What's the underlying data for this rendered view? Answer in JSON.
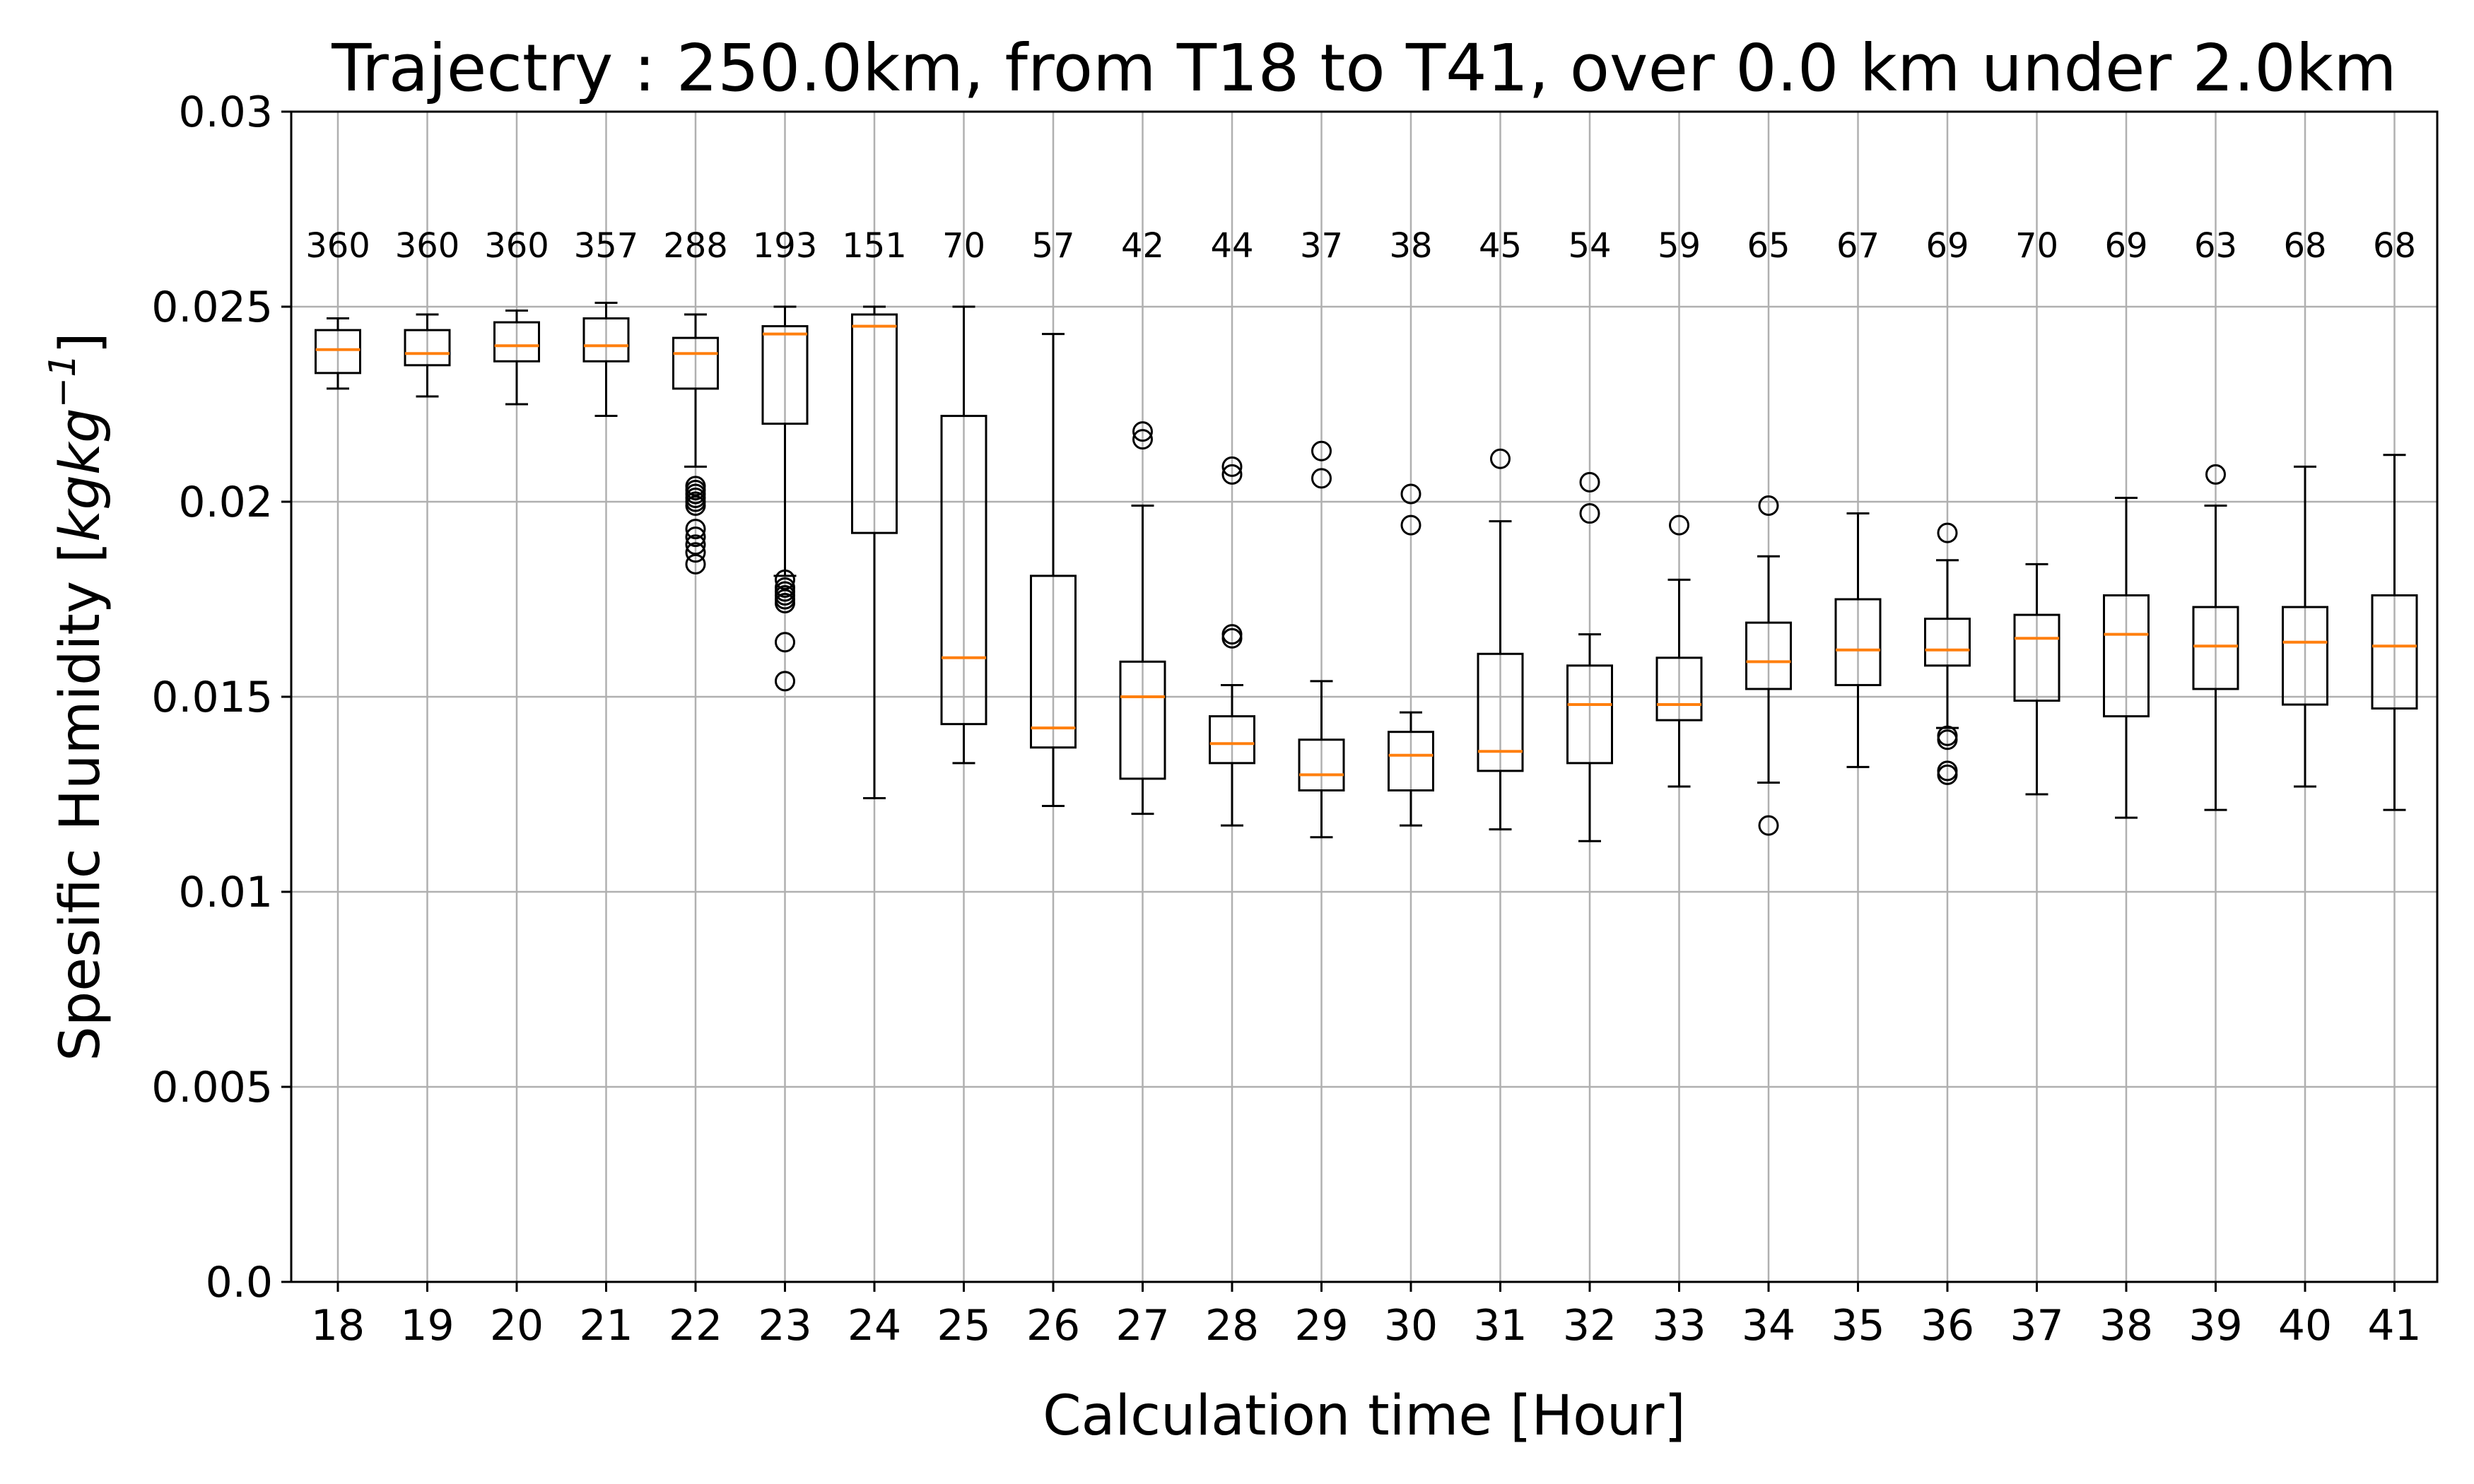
{
  "chart_data": {
    "type": "box",
    "title": "Trajectry : 250.0km, from T18 to T41, over 0.0 km under 2.0km",
    "xlabel": "Calculation time [Hour]",
    "ylabel_prefix": "Spesific Humidity [",
    "ylabel_unit": "kgkg",
    "ylabel_exp": "−1",
    "ylabel_suffix": "]",
    "ylim": [
      0.0,
      0.03
    ],
    "yticks": [
      0.0,
      0.005,
      0.01,
      0.015,
      0.02,
      0.025,
      0.03
    ],
    "ytick_labels": [
      "0.0",
      "0.005",
      "0.01",
      "0.015",
      "0.02",
      "0.025",
      "0.03"
    ],
    "grid": true,
    "colors": {
      "box": "#000000",
      "median": "#ff7f0e",
      "grid": "#b0b0b0"
    },
    "categories": [
      "18",
      "19",
      "20",
      "21",
      "22",
      "23",
      "24",
      "25",
      "26",
      "27",
      "28",
      "29",
      "30",
      "31",
      "32",
      "33",
      "34",
      "35",
      "36",
      "37",
      "38",
      "39",
      "40",
      "41"
    ],
    "counts": [
      "360",
      "360",
      "360",
      "357",
      "288",
      "193",
      "151",
      "70",
      "57",
      "42",
      "44",
      "37",
      "38",
      "45",
      "54",
      "59",
      "65",
      "67",
      "69",
      "70",
      "69",
      "63",
      "68",
      "68"
    ],
    "boxes": [
      {
        "whislo": 0.0229,
        "q1": 0.0233,
        "med": 0.0239,
        "q3": 0.0244,
        "whishi": 0.0247,
        "fliers": []
      },
      {
        "whislo": 0.0227,
        "q1": 0.0235,
        "med": 0.0238,
        "q3": 0.0244,
        "whishi": 0.0248,
        "fliers": []
      },
      {
        "whislo": 0.0225,
        "q1": 0.0236,
        "med": 0.024,
        "q3": 0.0246,
        "whishi": 0.0249,
        "fliers": []
      },
      {
        "whislo": 0.0222,
        "q1": 0.0236,
        "med": 0.024,
        "q3": 0.0247,
        "whishi": 0.0251,
        "fliers": []
      },
      {
        "whislo": 0.0209,
        "q1": 0.0229,
        "med": 0.0238,
        "q3": 0.0242,
        "whishi": 0.0248,
        "fliers": [
          0.0204,
          0.0203,
          0.0202,
          0.0201,
          0.02,
          0.0199,
          0.0193,
          0.0191,
          0.0189,
          0.0187,
          0.0184
        ]
      },
      {
        "whislo": 0.0181,
        "q1": 0.022,
        "med": 0.0243,
        "q3": 0.0245,
        "whishi": 0.025,
        "fliers": [
          0.018,
          0.0178,
          0.0177,
          0.0176,
          0.0175,
          0.0174,
          0.0164,
          0.0154
        ]
      },
      {
        "whislo": 0.0124,
        "q1": 0.0192,
        "med": 0.0245,
        "q3": 0.0248,
        "whishi": 0.025,
        "fliers": []
      },
      {
        "whislo": 0.0133,
        "q1": 0.0143,
        "med": 0.016,
        "q3": 0.0222,
        "whishi": 0.025,
        "fliers": []
      },
      {
        "whislo": 0.0122,
        "q1": 0.0137,
        "med": 0.0142,
        "q3": 0.0181,
        "whishi": 0.0243,
        "fliers": []
      },
      {
        "whislo": 0.012,
        "q1": 0.0129,
        "med": 0.015,
        "q3": 0.0159,
        "whishi": 0.0199,
        "fliers": [
          0.0218,
          0.0216
        ]
      },
      {
        "whislo": 0.0117,
        "q1": 0.0133,
        "med": 0.0138,
        "q3": 0.0145,
        "whishi": 0.0153,
        "fliers": [
          0.0166,
          0.0165,
          0.0209,
          0.0207
        ]
      },
      {
        "whislo": 0.0114,
        "q1": 0.0126,
        "med": 0.013,
        "q3": 0.0139,
        "whishi": 0.0154,
        "fliers": [
          0.0213,
          0.0206
        ]
      },
      {
        "whislo": 0.0117,
        "q1": 0.0126,
        "med": 0.0135,
        "q3": 0.0141,
        "whishi": 0.0146,
        "fliers": [
          0.0202,
          0.0194
        ]
      },
      {
        "whislo": 0.0116,
        "q1": 0.0131,
        "med": 0.0136,
        "q3": 0.0161,
        "whishi": 0.0195,
        "fliers": [
          0.0211
        ]
      },
      {
        "whislo": 0.0113,
        "q1": 0.0133,
        "med": 0.0148,
        "q3": 0.0158,
        "whishi": 0.0166,
        "fliers": [
          0.0205,
          0.0197
        ]
      },
      {
        "whislo": 0.0127,
        "q1": 0.0144,
        "med": 0.0148,
        "q3": 0.016,
        "whishi": 0.018,
        "fliers": [
          0.0194
        ]
      },
      {
        "whislo": 0.0128,
        "q1": 0.0152,
        "med": 0.0159,
        "q3": 0.0169,
        "whishi": 0.0186,
        "fliers": [
          0.0199,
          0.0117
        ]
      },
      {
        "whislo": 0.0132,
        "q1": 0.0153,
        "med": 0.0162,
        "q3": 0.0175,
        "whishi": 0.0197,
        "fliers": []
      },
      {
        "whislo": 0.0142,
        "q1": 0.0158,
        "med": 0.0162,
        "q3": 0.017,
        "whishi": 0.0185,
        "fliers": [
          0.0192,
          0.014,
          0.0139,
          0.0131,
          0.013
        ]
      },
      {
        "whislo": 0.0125,
        "q1": 0.0149,
        "med": 0.0165,
        "q3": 0.0171,
        "whishi": 0.0184,
        "fliers": []
      },
      {
        "whislo": 0.0119,
        "q1": 0.0145,
        "med": 0.0166,
        "q3": 0.0176,
        "whishi": 0.0201,
        "fliers": []
      },
      {
        "whislo": 0.0121,
        "q1": 0.0152,
        "med": 0.0163,
        "q3": 0.0173,
        "whishi": 0.0199,
        "fliers": [
          0.0207
        ]
      },
      {
        "whislo": 0.0127,
        "q1": 0.0148,
        "med": 0.0164,
        "q3": 0.0173,
        "whishi": 0.0209,
        "fliers": []
      },
      {
        "whislo": 0.0121,
        "q1": 0.0147,
        "med": 0.0163,
        "q3": 0.0176,
        "whishi": 0.0212,
        "fliers": []
      }
    ]
  }
}
